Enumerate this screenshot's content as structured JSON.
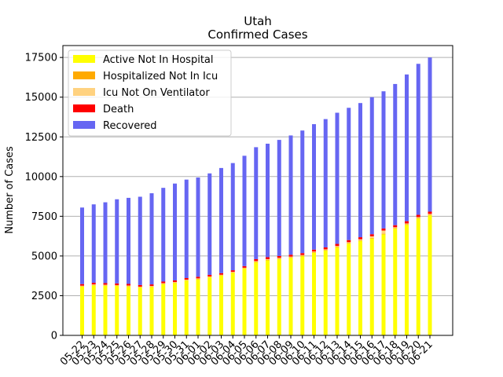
{
  "chart_data": {
    "type": "bar",
    "stacked": true,
    "title": "Utah",
    "subtitle": "Confirmed Cases",
    "xlabel": "",
    "ylabel": "Number of Cases",
    "ylim": [
      0,
      18250
    ],
    "yticks": [
      0,
      2500,
      5000,
      7500,
      10000,
      12500,
      15000,
      17500
    ],
    "ytick_labels": [
      "0",
      "2500",
      "5000",
      "7500",
      "10000",
      "12500",
      "15000",
      "17500"
    ],
    "grid": "horizontal",
    "legend_position": "top-left",
    "categories": [
      "05-22",
      "05-23",
      "05-24",
      "05-25",
      "05-26",
      "05-27",
      "05-28",
      "05-29",
      "05-30",
      "05-31",
      "06-01",
      "06-02",
      "06-03",
      "06-04",
      "06-05",
      "06-06",
      "06-07",
      "06-08",
      "06-09",
      "06-10",
      "06-11",
      "06-12",
      "06-13",
      "06-14",
      "06-15",
      "06-16",
      "06-17",
      "06-18",
      "06-19",
      "06-20",
      "06-21"
    ],
    "series": [
      {
        "name": "Active Not In Hospital",
        "color": "#ffff00",
        "values": [
          3070,
          3150,
          3130,
          3110,
          3080,
          3010,
          3050,
          3230,
          3300,
          3450,
          3530,
          3650,
          3760,
          3940,
          4200,
          4600,
          4720,
          4800,
          4880,
          4980,
          5200,
          5340,
          5540,
          5780,
          5950,
          6100,
          6360,
          6720,
          6960,
          7360,
          7560
        ]
      },
      {
        "name": "Hospitalized Not In Icu",
        "color": "#ffaa00",
        "values": [
          30,
          30,
          30,
          30,
          30,
          30,
          30,
          30,
          30,
          30,
          30,
          30,
          30,
          30,
          30,
          40,
          40,
          40,
          40,
          40,
          40,
          40,
          40,
          40,
          40,
          40,
          40,
          40,
          40,
          40,
          40
        ]
      },
      {
        "name": "Icu Not On Ventilator",
        "color": "#ffd280",
        "values": [
          30,
          30,
          30,
          30,
          30,
          30,
          30,
          30,
          30,
          30,
          30,
          30,
          30,
          30,
          30,
          40,
          40,
          40,
          40,
          40,
          40,
          40,
          50,
          50,
          60,
          100,
          200,
          50,
          50,
          50,
          50
        ]
      },
      {
        "name": "Death",
        "color": "#ff0000",
        "values": [
          100,
          100,
          100,
          100,
          100,
          100,
          100,
          100,
          100,
          100,
          100,
          100,
          100,
          100,
          100,
          120,
          120,
          120,
          120,
          120,
          120,
          120,
          130,
          130,
          130,
          130,
          130,
          130,
          140,
          140,
          140
        ]
      },
      {
        "name": "Recovered",
        "color": "#6666f2",
        "values": [
          4820,
          4940,
          5090,
          5300,
          5420,
          5560,
          5740,
          5900,
          6100,
          6200,
          6250,
          6390,
          6620,
          6750,
          6950,
          7050,
          7150,
          7310,
          7510,
          7720,
          7900,
          8080,
          8260,
          8330,
          8450,
          8630,
          8640,
          8890,
          9240,
          9510,
          9710
        ]
      }
    ]
  }
}
